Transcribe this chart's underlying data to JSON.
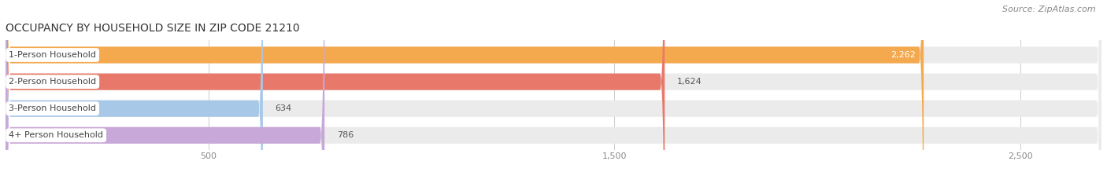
{
  "title": "OCCUPANCY BY HOUSEHOLD SIZE IN ZIP CODE 21210",
  "source": "Source: ZipAtlas.com",
  "categories": [
    "1-Person Household",
    "2-Person Household",
    "3-Person Household",
    "4+ Person Household"
  ],
  "values": [
    2262,
    1624,
    634,
    786
  ],
  "bar_colors": [
    "#f5a94e",
    "#e8796a",
    "#a8c8e8",
    "#c8a8d8"
  ],
  "bar_bg_color": "#ebebeb",
  "background_color": "#ffffff",
  "xlim_max": 2700,
  "title_fontsize": 10,
  "label_fontsize": 8,
  "value_fontsize": 8,
  "source_fontsize": 8,
  "bar_height": 0.62,
  "bar_gap": 1.0,
  "grid_color": "#cccccc",
  "label_color": "#444444",
  "value_color_inside": "#ffffff",
  "value_color_outside": "#555555",
  "tick_color": "#888888",
  "source_color": "#888888",
  "title_color": "#333333",
  "rounding_size": 12
}
